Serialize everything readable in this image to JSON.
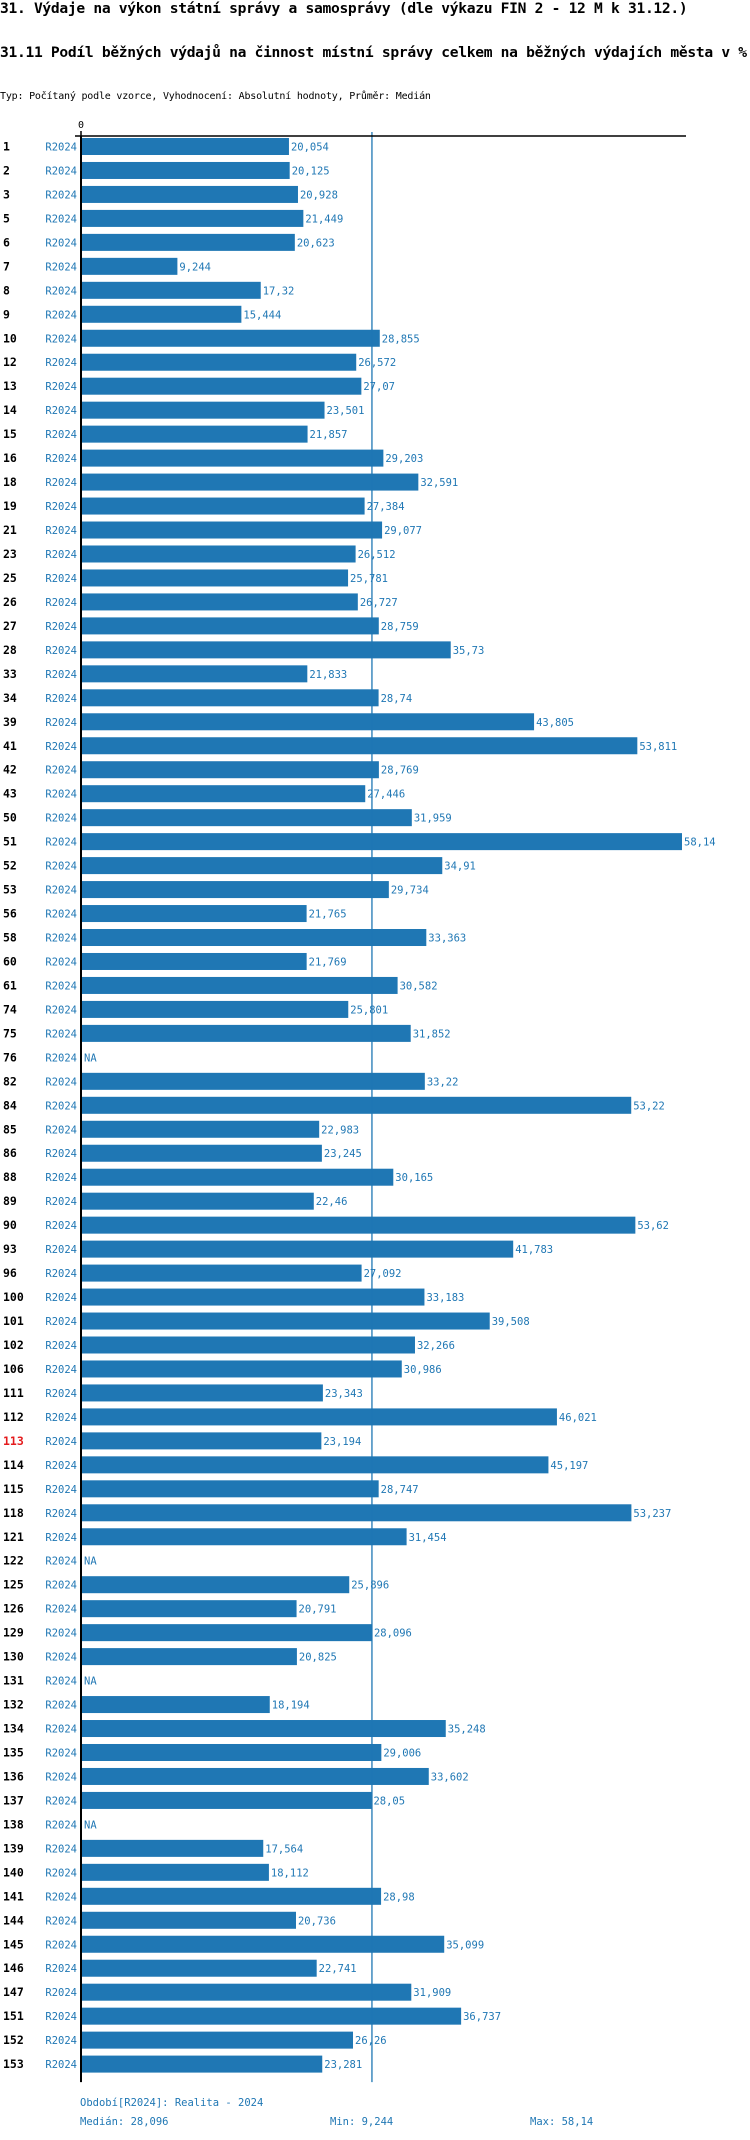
{
  "header": {
    "title": "31. Výdaje na výkon státní správy a samosprávy (dle výkazu FIN 2 - 12 M k 31.12.)",
    "subtitle": "31.11 Podíl běžných výdajů na činnost místní správy celkem na běžných výdajích města v %",
    "meta": "Typ: Počítaný podle vzorce, Vyhodnocení: Absolutní hodnoty, Průměr: Medián"
  },
  "colors": {
    "bar": "#1f77b4",
    "median_line": "#1f77b4",
    "axis": "#000000",
    "highlight_label": "#e41a1c"
  },
  "chart_data": {
    "type": "bar",
    "orientation": "horizontal",
    "title": "31.11 Podíl běžných výdajů na činnost místní správy celkem na běžných výdajích města v %",
    "xlabel": "",
    "ylabel": "",
    "x_tick_labels": [
      "0"
    ],
    "xlim": [
      0,
      59.5
    ],
    "period": "R2024",
    "highlighted_category": "113",
    "median": 28.096,
    "min": 9.244,
    "max": 58.14,
    "categories": [
      "1",
      "2",
      "3",
      "5",
      "6",
      "7",
      "8",
      "9",
      "10",
      "12",
      "13",
      "14",
      "15",
      "16",
      "18",
      "19",
      "21",
      "23",
      "25",
      "26",
      "27",
      "28",
      "33",
      "34",
      "39",
      "41",
      "42",
      "43",
      "50",
      "51",
      "52",
      "53",
      "56",
      "58",
      "60",
      "61",
      "74",
      "75",
      "76",
      "82",
      "84",
      "85",
      "86",
      "88",
      "89",
      "90",
      "93",
      "96",
      "100",
      "101",
      "102",
      "106",
      "111",
      "112",
      "113",
      "114",
      "115",
      "118",
      "121",
      "122",
      "125",
      "126",
      "129",
      "130",
      "131",
      "132",
      "134",
      "135",
      "136",
      "137",
      "138",
      "139",
      "140",
      "141",
      "144",
      "145",
      "146",
      "147",
      "151",
      "152",
      "153"
    ],
    "values": [
      20.054,
      20.125,
      20.928,
      21.449,
      20.623,
      9.244,
      17.32,
      15.444,
      28.855,
      26.572,
      27.07,
      23.501,
      21.857,
      29.203,
      32.591,
      27.384,
      29.077,
      26.512,
      25.781,
      26.727,
      28.759,
      35.73,
      21.833,
      28.74,
      43.805,
      53.811,
      28.769,
      27.446,
      31.959,
      58.14,
      34.91,
      29.734,
      21.765,
      33.363,
      21.769,
      30.582,
      25.801,
      31.852,
      null,
      33.22,
      53.22,
      22.983,
      23.245,
      30.165,
      22.46,
      53.62,
      41.783,
      27.092,
      33.183,
      39.508,
      32.266,
      30.986,
      23.343,
      46.021,
      23.194,
      45.197,
      28.747,
      53.237,
      31.454,
      null,
      25.896,
      20.791,
      28.096,
      20.825,
      null,
      18.194,
      35.248,
      29.006,
      33.602,
      28.05,
      null,
      17.564,
      18.112,
      28.98,
      20.736,
      35.099,
      22.741,
      31.909,
      36.737,
      26.26,
      23.281
    ],
    "value_labels": [
      "20,054",
      "20,125",
      "20,928",
      "21,449",
      "20,623",
      "9,244",
      "17,32",
      "15,444",
      "28,855",
      "26,572",
      "27,07",
      "23,501",
      "21,857",
      "29,203",
      "32,591",
      "27,384",
      "29,077",
      "26,512",
      "25,781",
      "26,727",
      "28,759",
      "35,73",
      "21,833",
      "28,74",
      "43,805",
      "53,811",
      "28,769",
      "27,446",
      "31,959",
      "58,14",
      "34,91",
      "29,734",
      "21,765",
      "33,363",
      "21,769",
      "30,582",
      "25,801",
      "31,852",
      "NA",
      "33,22",
      "53,22",
      "22,983",
      "23,245",
      "30,165",
      "22,46",
      "53,62",
      "41,783",
      "27,092",
      "33,183",
      "39,508",
      "32,266",
      "30,986",
      "23,343",
      "46,021",
      "23,194",
      "45,197",
      "28,747",
      "53,237",
      "31,454",
      "NA",
      "25,896",
      "20,791",
      "28,096",
      "20,825",
      "NA",
      "18,194",
      "35,248",
      "29,006",
      "33,602",
      "28,05",
      "NA",
      "17,564",
      "18,112",
      "28,98",
      "20,736",
      "35,099",
      "22,741",
      "31,909",
      "36,737",
      "26,26",
      "23,281"
    ],
    "legend": "none",
    "grid": false
  },
  "footer": {
    "period_legend": "Období[R2024]: Realita - 2024",
    "median_label": "Medián: 28,096",
    "min_label": "Min: 9,244",
    "max_label": "Max: 58,14"
  }
}
